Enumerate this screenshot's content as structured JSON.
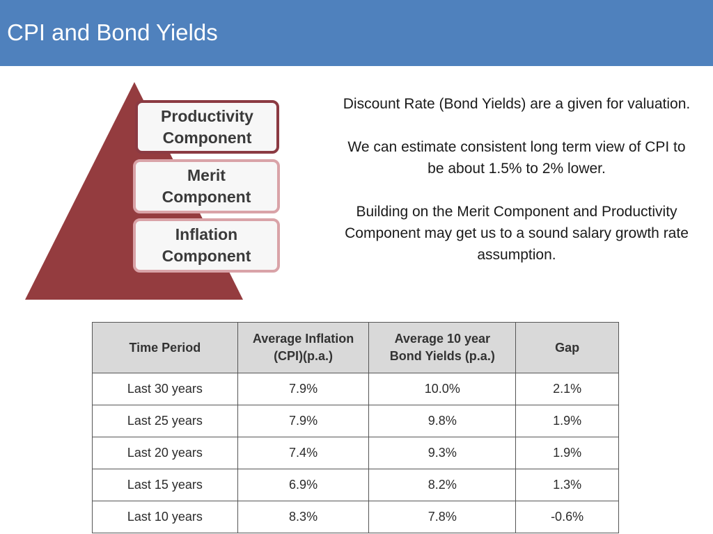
{
  "slide": {
    "title": "CPI and Bond Yields"
  },
  "pyramid": {
    "fill_color": "#943c3f",
    "components": [
      {
        "label_line1": "Productivity",
        "label_line2": "Component"
      },
      {
        "label_line1": "Merit",
        "label_line2": "Component"
      },
      {
        "label_line1": "Inflation",
        "label_line2": "Component"
      }
    ]
  },
  "body_text": {
    "paragraph1": "Discount Rate (Bond Yields) are a given for valuation.",
    "paragraph2": "We can estimate consistent long term view of CPI to be about 1.5% to 2% lower.",
    "paragraph3": "Building on the Merit Component and Productivity Component may get us to a sound salary growth rate assumption."
  },
  "table": {
    "headers": [
      {
        "line1": "Time Period",
        "line2": ""
      },
      {
        "line1": "Average Inflation",
        "line2": "(CPI)(p.a.)"
      },
      {
        "line1": "Average 10 year",
        "line2": "Bond Yields (p.a.)"
      },
      {
        "line1": "Gap",
        "line2": ""
      }
    ],
    "rows": [
      [
        "Last 30 years",
        "7.9%",
        "10.0%",
        "2.1%"
      ],
      [
        "Last 25 years",
        "7.9%",
        "9.8%",
        "1.9%"
      ],
      [
        "Last 20 years",
        "7.4%",
        "9.3%",
        "1.9%"
      ],
      [
        "Last 15 years",
        "6.9%",
        "8.2%",
        "1.3%"
      ],
      [
        "Last 10 years",
        "8.3%",
        "7.8%",
        "-0.6%"
      ]
    ]
  },
  "colors": {
    "header_bar": "#4f81bd",
    "table_header_bg": "#d9d9d9"
  }
}
